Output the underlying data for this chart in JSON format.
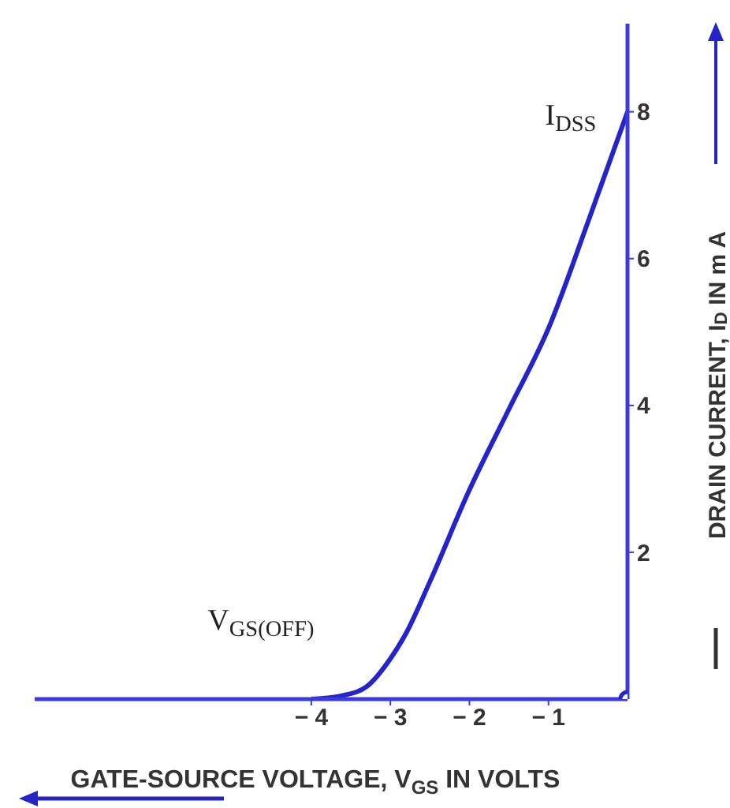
{
  "chart_data": {
    "type": "line",
    "xlabel": "GATE-SOURCE VOLTAGE, V$_{GS}$ IN VOLTS",
    "ylabel": "DRAIN CURRENT, I$_{D}$ IN m A",
    "xlim": [
      -7.5,
      0
    ],
    "ylim": [
      0,
      9.2
    ],
    "xticks": [
      {
        "value": -4,
        "label": "− 4"
      },
      {
        "value": -3,
        "label": "− 3"
      },
      {
        "value": -2,
        "label": "− 2"
      },
      {
        "value": -1,
        "label": "− 1"
      }
    ],
    "yticks": [
      2,
      4,
      6,
      8
    ],
    "grid": false,
    "line_style": "solid",
    "series": [
      {
        "color": "#2424c8",
        "marker": "none",
        "x": [
          -4,
          -3.6,
          -3.3,
          -3,
          -2.8,
          -2.5,
          -2,
          -1.5,
          -1,
          -0.5,
          0
        ],
        "values": [
          0,
          0.05,
          0.17,
          0.55,
          0.9,
          1.6,
          2.85,
          3.95,
          5.05,
          6.5,
          8
        ]
      },
      {
        "type": "scatter",
        "color": "#2424c8",
        "marker": "circle",
        "x": [
          0
        ],
        "values": [
          0
        ]
      }
    ],
    "annotations": [
      {
        "text": "I$_{DSS}$",
        "x": 0,
        "y": 8
      },
      {
        "text": "V$_{GS(OFF)}$",
        "x": -4,
        "y": 0
      }
    ]
  }
}
